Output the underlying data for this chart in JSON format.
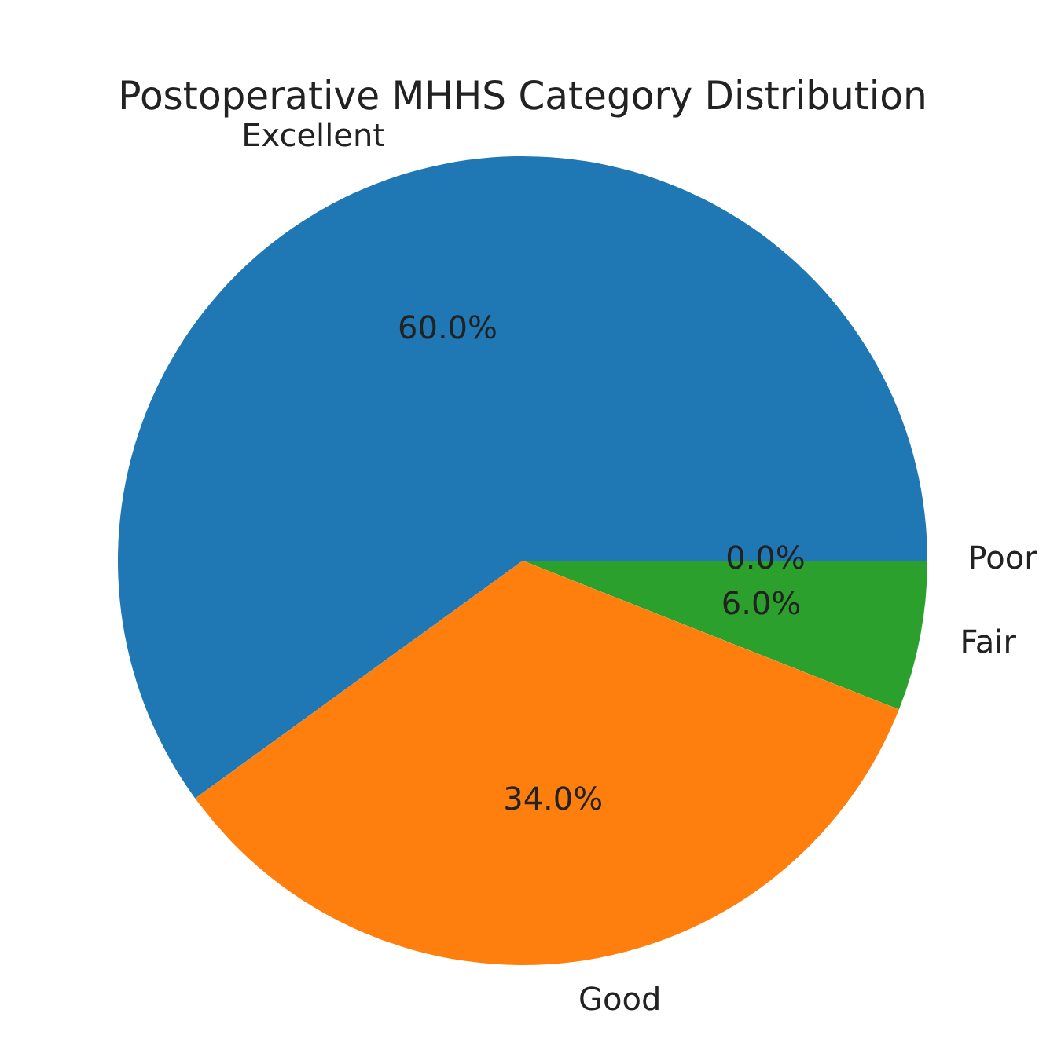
{
  "chart_data": {
    "type": "pie",
    "title": "Postoperative MHHS Category Distribution",
    "categories": [
      "Excellent",
      "Good",
      "Fair",
      "Poor"
    ],
    "values": [
      60,
      34,
      6,
      0
    ],
    "colors": [
      "#1f77b4",
      "#ff7f0e",
      "#2ca02c",
      "#d62728"
    ],
    "value_labels": [
      "60.0%",
      "34.0%",
      "6.0%",
      "0.0%"
    ],
    "legend": false
  }
}
